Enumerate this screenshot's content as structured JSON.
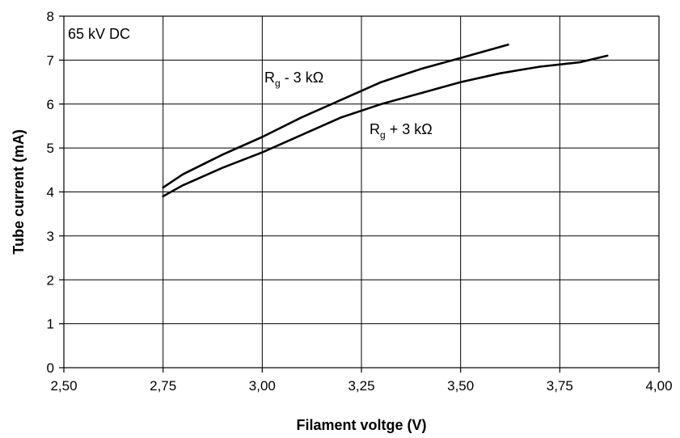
{
  "chart_data": {
    "type": "line",
    "title": "",
    "xlabel": "Filament voltge (V)",
    "ylabel": "Tube current (mA)",
    "xlim": [
      2.5,
      4.0
    ],
    "ylim": [
      0,
      8
    ],
    "x_ticks": [
      2.5,
      2.75,
      3.0,
      3.25,
      3.5,
      3.75,
      4.0
    ],
    "x_tick_labels": [
      "2,50",
      "2,75",
      "3,00",
      "3,25",
      "3,50",
      "3,75",
      "4,00"
    ],
    "y_ticks": [
      0,
      1,
      2,
      3,
      4,
      5,
      6,
      7,
      8
    ],
    "y_tick_labels": [
      "0",
      "1",
      "2",
      "3",
      "4",
      "5",
      "6",
      "7",
      "8"
    ],
    "grid": true,
    "line_color": "#000000",
    "annotation_box": "65 kV DC",
    "series": [
      {
        "label_main": "R",
        "label_sub": "g",
        "label_rest": " - 3 kΩ",
        "x": [
          2.75,
          2.8,
          2.9,
          3.0,
          3.1,
          3.2,
          3.3,
          3.4,
          3.5,
          3.62
        ],
        "y": [
          4.1,
          4.4,
          4.85,
          5.25,
          5.7,
          6.1,
          6.5,
          6.8,
          7.05,
          7.35
        ]
      },
      {
        "label_main": "R",
        "label_sub": "g",
        "label_rest": " + 3 kΩ",
        "x": [
          2.75,
          2.8,
          2.9,
          3.0,
          3.1,
          3.2,
          3.3,
          3.4,
          3.5,
          3.6,
          3.7,
          3.8,
          3.87
        ],
        "y": [
          3.9,
          4.15,
          4.55,
          4.9,
          5.3,
          5.7,
          6.0,
          6.25,
          6.5,
          6.7,
          6.85,
          6.95,
          7.1
        ]
      }
    ]
  }
}
